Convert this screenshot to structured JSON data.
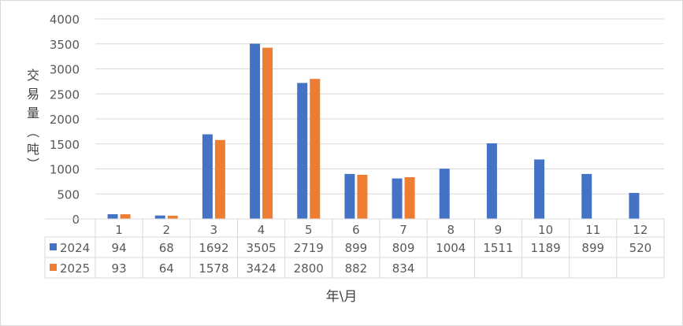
{
  "chart_data": {
    "type": "bar",
    "categories": [
      "1",
      "2",
      "3",
      "4",
      "5",
      "6",
      "7",
      "8",
      "9",
      "10",
      "11",
      "12"
    ],
    "series": [
      {
        "name": "2024",
        "color": "#4472C4",
        "values": [
          94,
          68,
          1692,
          3505,
          2719,
          899,
          809,
          1004,
          1511,
          1189,
          899,
          520
        ]
      },
      {
        "name": "2025",
        "color": "#ED7D31",
        "values": [
          93,
          64,
          1578,
          3424,
          2800,
          882,
          834,
          null,
          null,
          null,
          null,
          null
        ]
      }
    ],
    "table_values": [
      [
        "94",
        "68",
        "1692",
        "3505",
        "2719",
        "899",
        "809",
        "1004",
        "1511",
        "1189",
        "899",
        "520"
      ],
      [
        "93",
        "64",
        "1578",
        "3424",
        "2800",
        "882",
        "834",
        "",
        "",
        "",
        "",
        ""
      ]
    ],
    "ylim": [
      0,
      4000
    ],
    "yticks": [
      0,
      500,
      1000,
      1500,
      2000,
      2500,
      3000,
      3500,
      4000
    ],
    "ylabel": "交易量（吨）",
    "xlabel": "年\\月",
    "grid": true,
    "legend": "data-table"
  }
}
